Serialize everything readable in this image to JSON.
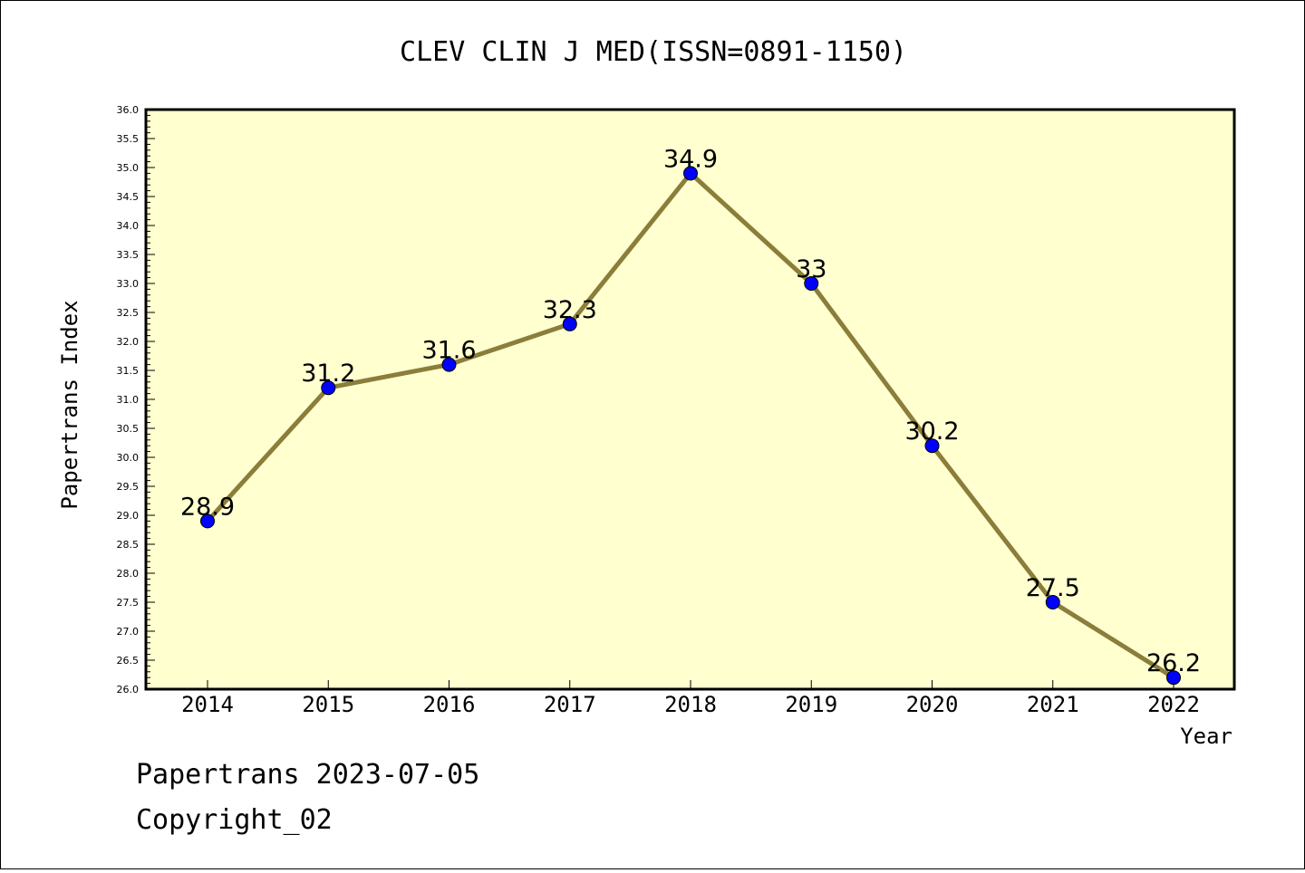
{
  "chart_data": {
    "type": "line",
    "title": "CLEV CLIN J MED(ISSN=0891-1150)",
    "xlabel": "Year",
    "ylabel": "Papertrans Index",
    "categories": [
      "2014",
      "2015",
      "2016",
      "2017",
      "2018",
      "2019",
      "2020",
      "2021",
      "2022"
    ],
    "values": [
      28.9,
      31.2,
      31.6,
      32.3,
      34.9,
      33,
      30.2,
      27.5,
      26.2
    ],
    "data_labels": [
      "28.9",
      "31.2",
      "31.6",
      "32.3",
      "34.9",
      "33",
      "30.2",
      "27.5",
      "26.2"
    ],
    "ylim": [
      26.0,
      36.0
    ],
    "ytick_step": 0.5,
    "grid": false,
    "colors": {
      "line": "#8b7d3a",
      "marker": "#0000ff",
      "plot_background": "#ffffd0"
    }
  },
  "footer": {
    "line1": "Papertrans 2023-07-05",
    "line2": "Copyright_02"
  }
}
